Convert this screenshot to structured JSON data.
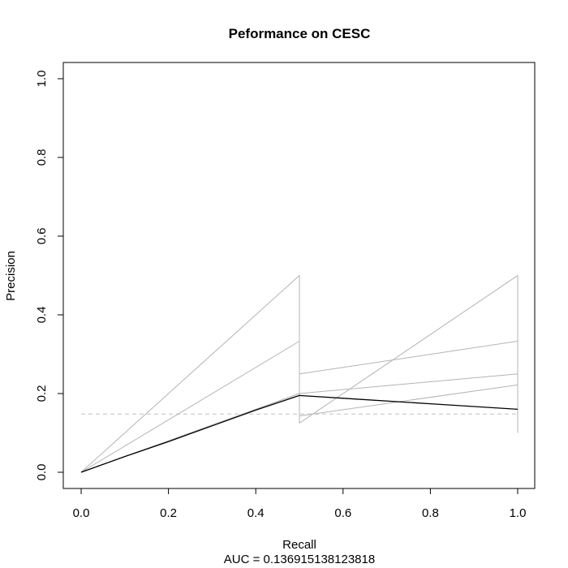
{
  "chart_data": {
    "type": "line",
    "title": "Peformance on CESC",
    "xlabel": "Recall",
    "ylabel": "Precision",
    "subtitle": "AUC =  0.136915138123818",
    "xlim": [
      0,
      1
    ],
    "ylim": [
      0,
      1
    ],
    "x_ticks": [
      "0.0",
      "0.2",
      "0.4",
      "0.6",
      "0.8",
      "1.0"
    ],
    "y_ticks": [
      "0.0",
      "0.2",
      "0.4",
      "0.6",
      "0.8",
      "1.0"
    ],
    "grid": false,
    "baseline": {
      "y": 0.148,
      "style": "dashed",
      "color": "#c0c0c0"
    },
    "series": [
      {
        "color": "#b4b4b4",
        "x": [
          0,
          0.5,
          0.5,
          1.0,
          1.0
        ],
        "y": [
          0,
          0.5,
          0.125,
          0.5,
          0.1
        ]
      },
      {
        "color": "#b4b4b4",
        "x": [
          0,
          0.5,
          0.5,
          1.0
        ],
        "y": [
          0,
          0.333,
          0.25,
          0.333
        ]
      },
      {
        "color": "#b4b4b4",
        "x": [
          0,
          0.5,
          0.5,
          1.0
        ],
        "y": [
          0,
          0.2,
          0.2,
          0.25
        ]
      },
      {
        "color": "#b4b4b4",
        "x": [
          0,
          0.5,
          0.5,
          1.0
        ],
        "y": [
          0,
          0.2,
          0.143,
          0.222
        ]
      },
      {
        "color": "#000000",
        "x": [
          0,
          0.1,
          0.2,
          0.3,
          0.4,
          0.5,
          0.6,
          0.8,
          1.0
        ],
        "y": [
          0,
          0.04,
          0.078,
          0.118,
          0.158,
          0.195,
          0.188,
          0.174,
          0.16
        ]
      }
    ]
  }
}
